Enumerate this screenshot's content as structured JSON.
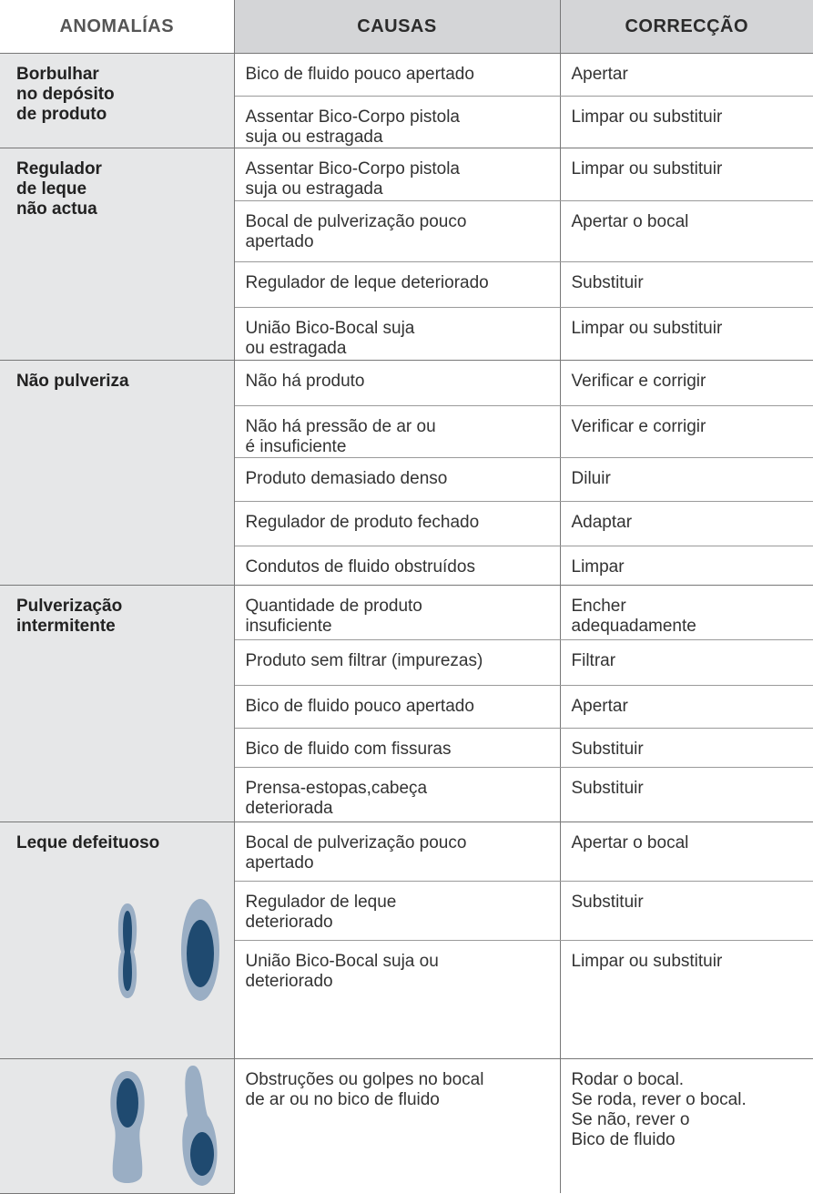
{
  "header": [
    "ANOMALÍAS",
    "CAUSAS",
    "CORRECÇÃO"
  ],
  "groups": [
    {
      "anomaly": "Borbulhar\nno depósito\nde produto",
      "rows": [
        [
          "Bico de fluido pouco apertado",
          "Apertar"
        ],
        [
          "Assentar Bico-Corpo pistola\nsuja ou estragada",
          "Limpar ou substituir"
        ]
      ]
    },
    {
      "anomaly": "Regulador\nde leque\nnão actua",
      "rows": [
        [
          "Assentar Bico-Corpo pistola\nsuja ou estragada",
          "Limpar ou substituir"
        ],
        [
          "Bocal de pulverização pouco\napertado",
          "Apertar o bocal"
        ],
        [
          "Regulador de leque deteriorado",
          "Substituir"
        ],
        [
          "União Bico-Bocal suja\nou estragada",
          "Limpar ou substituir"
        ]
      ]
    },
    {
      "anomaly": "Não pulveriza",
      "rows": [
        [
          "Não há produto",
          "Verificar e corrigir"
        ],
        [
          "Não há pressão de ar ou\né insuficiente",
          "Verificar e corrigir"
        ],
        [
          "Produto demasiado denso",
          "Diluir"
        ],
        [
          "Regulador de produto fechado",
          "Adaptar"
        ],
        [
          "Condutos de fluido obstruídos",
          "Limpar"
        ]
      ]
    },
    {
      "anomaly": "Pulverização\nintermitente",
      "rows": [
        [
          "Quantidade de produto\ninsuficiente",
          "Encher\nadequadamente"
        ],
        [
          "Produto sem filtrar (impurezas)",
          "Filtrar"
        ],
        [
          "Bico de fluido pouco apertado",
          "Apertar"
        ],
        [
          "Bico de fluido com fissuras",
          "Substituir"
        ],
        [
          "Prensa-estopas,cabeça\ndeteriorada",
          "Substituir"
        ]
      ]
    },
    {
      "anomaly": "Leque defeituoso",
      "rows": [
        [
          "Bocal de pulverização pouco\napertado",
          "Apertar o bocal"
        ],
        [
          "Regulador de leque\ndeteriorado",
          "Substituir"
        ],
        [
          "União Bico-Bocal suja ou\ndeteriorado",
          "Limpar ou substituir"
        ]
      ]
    },
    {
      "rows": [
        [
          "Obstruções ou golpes no bocal\nde ar ou no bico de fluido",
          "Rodar o bocal.\nSe roda, rever o bocal.\nSe não, rever o\nBico de fluido"
        ]
      ]
    }
  ]
}
